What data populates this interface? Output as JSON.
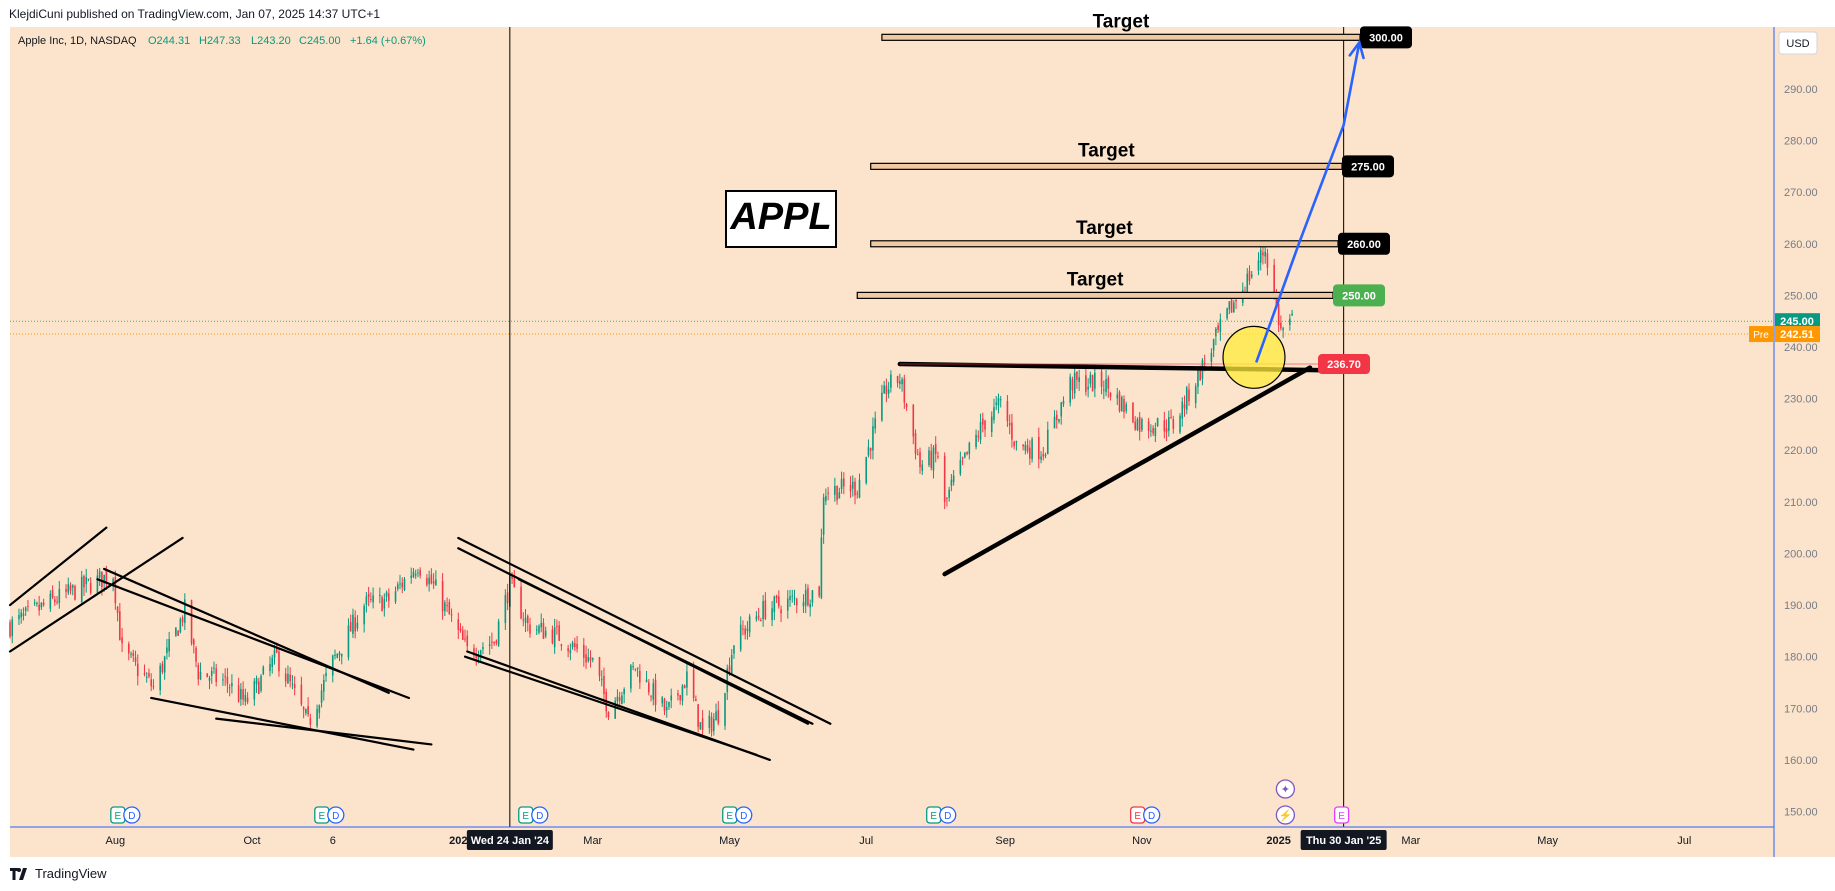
{
  "header": {
    "publish_text": "KlejdiCuni published on TradingView.com, Jan 07, 2025 14:37 UTC+1"
  },
  "legend": {
    "symbol": "Apple Inc, 1D, NASDAQ",
    "open": "O244.31",
    "high": "H247.33",
    "low": "L243.20",
    "close": "C245.00",
    "change": "+1.64 (+0.67%)"
  },
  "currency_label": "USD",
  "footer": {
    "brand": "TradingView"
  },
  "colors": {
    "background": "#fbe4cb",
    "up": "#089981",
    "down": "#f23645",
    "trend_line": "#000000",
    "projection_arrow": "#2962ff",
    "highlight_circle": "#ffeb3b",
    "price_line_current": "#4caf50",
    "price_line_pre": "#ff9800"
  },
  "chart_data": {
    "type": "candlestick",
    "symbol": "AAPL",
    "interval": "1D",
    "exchange": "NASDAQ",
    "title_box": "APPL",
    "y_axis": {
      "ticks": [
        150,
        160,
        170,
        180,
        190,
        200,
        210,
        220,
        230,
        240,
        250,
        260,
        270,
        280,
        290
      ],
      "tick_labels": [
        "150.00",
        "160.00",
        "170.00",
        "180.00",
        "190.00",
        "200.00",
        "210.00",
        "220.00",
        "230.00",
        "240.00",
        "250.00",
        "260.00",
        "270.00",
        "280.00",
        "290.00"
      ],
      "range": [
        147,
        302
      ]
    },
    "x_axis": {
      "labels": [
        {
          "text": "Aug",
          "date": "2023-08-01"
        },
        {
          "text": "Oct",
          "date": "2023-10-01"
        },
        {
          "text": "6",
          "date": "2023-11-06"
        },
        {
          "text": "202",
          "date": "2024-01-01"
        },
        {
          "text": "Mar",
          "date": "2024-03-01"
        },
        {
          "text": "May",
          "date": "2024-05-01"
        },
        {
          "text": "Jul",
          "date": "2024-07-01"
        },
        {
          "text": "Sep",
          "date": "2024-09-01"
        },
        {
          "text": "Nov",
          "date": "2024-11-01"
        },
        {
          "text": "2025",
          "date": "2025-01-01"
        },
        {
          "text": "Mar",
          "date": "2025-03-01"
        },
        {
          "text": "May",
          "date": "2025-05-01"
        },
        {
          "text": "Jul",
          "date": "2025-07-01"
        }
      ],
      "range": [
        "2023-06-15",
        "2025-08-10"
      ]
    },
    "cursor_labels": [
      {
        "text": "Wed 24 Jan '24",
        "date": "2024-01-24"
      },
      {
        "text": "Thu 30 Jan '25",
        "date": "2025-01-30"
      }
    ],
    "price_points": [
      [
        "2023-06-15",
        186
      ],
      [
        "2023-07-05",
        191
      ],
      [
        "2023-07-20",
        194
      ],
      [
        "2023-07-31",
        196
      ],
      [
        "2023-08-04",
        181
      ],
      [
        "2023-08-18",
        174
      ],
      [
        "2023-09-01",
        189
      ],
      [
        "2023-09-07",
        177
      ],
      [
        "2023-09-20",
        175
      ],
      [
        "2023-09-28",
        171
      ],
      [
        "2023-10-12",
        180
      ],
      [
        "2023-10-26",
        167
      ],
      [
        "2023-11-06",
        179
      ],
      [
        "2023-11-20",
        190
      ],
      [
        "2023-12-01",
        191
      ],
      [
        "2023-12-14",
        198
      ],
      [
        "2023-12-22",
        193
      ],
      [
        "2024-01-05",
        181
      ],
      [
        "2024-01-17",
        183
      ],
      [
        "2024-01-24",
        194
      ],
      [
        "2024-02-01",
        186
      ],
      [
        "2024-02-15",
        184
      ],
      [
        "2024-03-01",
        179
      ],
      [
        "2024-03-08",
        170
      ],
      [
        "2024-03-20",
        178
      ],
      [
        "2024-04-03",
        169
      ],
      [
        "2024-04-12",
        176
      ],
      [
        "2024-04-19",
        165
      ],
      [
        "2024-04-26",
        169
      ],
      [
        "2024-05-03",
        183
      ],
      [
        "2024-05-16",
        189
      ],
      [
        "2024-05-30",
        191
      ],
      [
        "2024-06-10",
        193
      ],
      [
        "2024-06-12",
        212
      ],
      [
        "2024-06-27",
        213
      ],
      [
        "2024-07-10",
        232
      ],
      [
        "2024-07-16",
        234
      ],
      [
        "2024-07-25",
        217
      ],
      [
        "2024-08-02",
        219
      ],
      [
        "2024-08-05",
        209
      ],
      [
        "2024-08-08",
        213
      ],
      [
        "2024-08-22",
        225
      ],
      [
        "2024-08-30",
        229
      ],
      [
        "2024-09-06",
        221
      ],
      [
        "2024-09-18",
        220
      ],
      [
        "2024-09-30",
        233
      ],
      [
        "2024-10-15",
        233
      ],
      [
        "2024-10-31",
        225
      ],
      [
        "2024-11-15",
        225
      ],
      [
        "2024-11-29",
        237
      ],
      [
        "2024-12-10",
        247
      ],
      [
        "2024-12-26",
        259
      ],
      [
        "2025-01-02",
        243
      ],
      [
        "2025-01-07",
        245
      ]
    ],
    "current_price": {
      "value": 245.0,
      "label": "245.00"
    },
    "premarket_price": {
      "value": 242.51,
      "label": "242.51",
      "tag": "Pre"
    },
    "targets": [
      {
        "label": "Target",
        "value": 250,
        "price_label": "250.00",
        "badge_color": "#4caf50",
        "start": "2024-06-27"
      },
      {
        "label": "Target",
        "value": 260,
        "price_label": "260.00",
        "badge_color": "#000000",
        "start": "2024-07-03"
      },
      {
        "label": "Target",
        "value": 275,
        "price_label": "275.00",
        "badge_color": "#000000",
        "start": "2024-07-03"
      },
      {
        "label": "Target",
        "value": 300,
        "price_label": "300.00",
        "badge_color": "#000000",
        "start": "2024-07-08"
      }
    ],
    "breakout_level": {
      "value": 236.7,
      "label": "236.70",
      "badge_color": "#f23645"
    },
    "trend_lines": [
      {
        "name": "triangle-resistance",
        "from": [
          "2024-07-16",
          236.7
        ],
        "to": [
          "2025-01-22",
          235.5
        ]
      },
      {
        "name": "triangle-support",
        "from": [
          "2024-08-05",
          196
        ],
        "to": [
          "2025-01-15",
          236
        ]
      },
      {
        "name": "channel1-upper-a",
        "from": [
          "2023-06-15",
          190
        ],
        "to": [
          "2023-07-28",
          205
        ]
      },
      {
        "name": "channel1-lower-a",
        "from": [
          "2023-06-15",
          181
        ],
        "to": [
          "2023-08-31",
          203
        ]
      },
      {
        "name": "channel1-upper-b",
        "from": [
          "2023-07-27",
          197
        ],
        "to": [
          "2023-12-01",
          173
        ]
      },
      {
        "name": "channel1-upper-c",
        "from": [
          "2023-07-24",
          195
        ],
        "to": [
          "2023-12-10",
          172
        ]
      },
      {
        "name": "channel1-lower-b",
        "from": [
          "2023-08-17",
          172
        ],
        "to": [
          "2023-12-12",
          162
        ]
      },
      {
        "name": "channel1-lower-c",
        "from": [
          "2023-09-15",
          168
        ],
        "to": [
          "2023-12-20",
          163
        ]
      },
      {
        "name": "channel2-upper-a",
        "from": [
          "2024-01-01",
          203
        ],
        "to": [
          "2024-06-15",
          167
        ]
      },
      {
        "name": "channel2-upper-b",
        "from": [
          "2024-01-01",
          201
        ],
        "to": [
          "2024-06-05",
          167
        ]
      },
      {
        "name": "channel2-upper-c",
        "from": [
          "2024-01-28",
          195
        ],
        "to": [
          "2024-06-07",
          167
        ]
      },
      {
        "name": "channel2-lower-a",
        "from": [
          "2024-01-05",
          181
        ],
        "to": [
          "2024-05-19",
          160
        ]
      },
      {
        "name": "channel2-lower-b",
        "from": [
          "2024-01-04",
          180
        ],
        "to": [
          "2024-05-13",
          161
        ]
      }
    ],
    "projection_arrow": {
      "points": [
        [
          "2024-12-22",
          237
        ],
        [
          "2025-01-10",
          260
        ],
        [
          "2025-01-30",
          283
        ],
        [
          "2025-02-06",
          299
        ]
      ]
    },
    "highlight_circle": {
      "center": [
        "2024-12-21",
        238
      ],
      "radius_price": 6
    },
    "event_markers": [
      {
        "date": "2023-08-03",
        "type": "E"
      },
      {
        "date": "2023-08-03",
        "type": "D"
      },
      {
        "date": "2023-11-02",
        "type": "E"
      },
      {
        "date": "2023-11-02",
        "type": "D"
      },
      {
        "date": "2024-02-01",
        "type": "E"
      },
      {
        "date": "2024-02-01",
        "type": "D"
      },
      {
        "date": "2024-05-02",
        "type": "E"
      },
      {
        "date": "2024-05-02",
        "type": "D"
      },
      {
        "date": "2024-08-01",
        "type": "E"
      },
      {
        "date": "2024-08-01",
        "type": "D"
      },
      {
        "date": "2024-10-31",
        "type": "E"
      },
      {
        "date": "2024-10-31",
        "type": "D"
      },
      {
        "date": "2025-01-04",
        "type": "spark"
      },
      {
        "date": "2025-01-04",
        "type": "star"
      },
      {
        "date": "2025-01-30",
        "type": "E"
      }
    ]
  }
}
